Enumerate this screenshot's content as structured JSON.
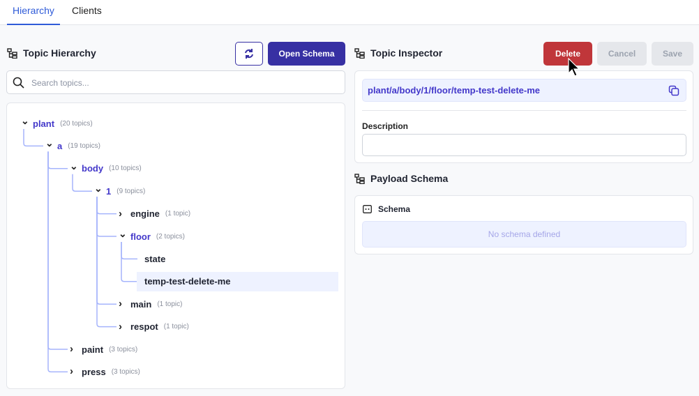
{
  "tabs": [
    {
      "label": "Hierarchy",
      "active": true
    },
    {
      "label": "Clients",
      "active": false
    }
  ],
  "hierarchy": {
    "title": "Topic Hierarchy",
    "refresh_icon": "refresh-icon",
    "open_schema": "Open Schema",
    "search_placeholder": "Search topics...",
    "tree": [
      {
        "label": "plant",
        "count": "(20 topics)",
        "level": 0,
        "expanded": true,
        "open": true
      },
      {
        "label": "a",
        "count": "(19 topics)",
        "level": 1,
        "expanded": true,
        "open": true
      },
      {
        "label": "body",
        "count": "(10 topics)",
        "level": 2,
        "expanded": true,
        "open": true
      },
      {
        "label": "1",
        "count": "(9 topics)",
        "level": 3,
        "expanded": true,
        "open": true
      },
      {
        "label": "engine",
        "count": "(1 topic)",
        "level": 4,
        "expanded": false
      },
      {
        "label": "floor",
        "count": "(2 topics)",
        "level": 4,
        "expanded": true,
        "open": true
      },
      {
        "label": "state",
        "count": "",
        "level": 5,
        "leaf": true
      },
      {
        "label": "temp-test-delete-me",
        "count": "",
        "level": 5,
        "leaf": true,
        "selected": true
      },
      {
        "label": "main",
        "count": "(1 topic)",
        "level": 4,
        "expanded": false
      },
      {
        "label": "respot",
        "count": "(1 topic)",
        "level": 4,
        "expanded": false
      },
      {
        "label": "paint",
        "count": "(3 topics)",
        "level": 2,
        "expanded": false
      },
      {
        "label": "press",
        "count": "(3 topics)",
        "level": 2,
        "expanded": false
      }
    ]
  },
  "inspector": {
    "title": "Topic Inspector",
    "delete": "Delete",
    "cancel": "Cancel",
    "save": "Save",
    "topic_path": "plant/a/body/1/floor/temp-test-delete-me",
    "description_label": "Description",
    "description_value": ""
  },
  "payload": {
    "title": "Payload Schema",
    "schema_label": "Schema",
    "empty": "No schema defined"
  },
  "colors": {
    "accent": "#3730a3",
    "delete": "#c0363a",
    "tree_line": "#a5b4fc",
    "selected_bg": "#eef2ff"
  }
}
